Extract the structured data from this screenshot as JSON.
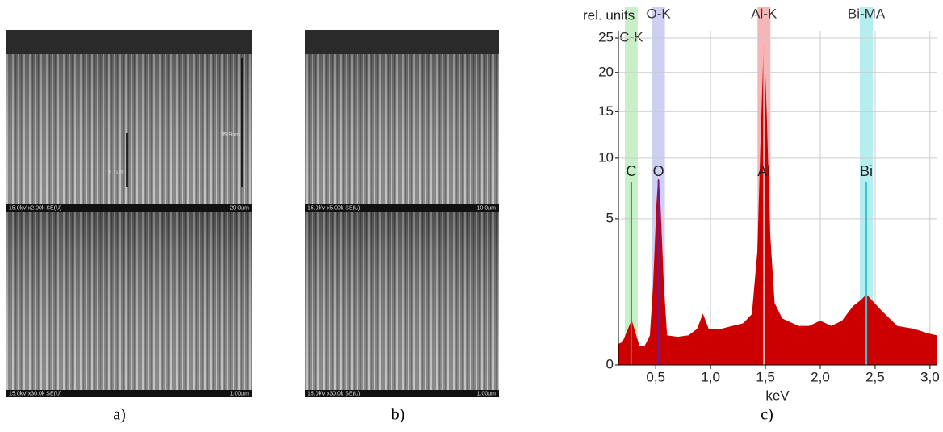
{
  "panels": [
    {
      "caption": "a)",
      "images": [
        {
          "info": "15.0kV x2.00k SE(U)",
          "scale": "20.0um",
          "annotations": [
            "35.9um",
            "16.1um"
          ]
        },
        {
          "info": "15.0kV x30.0k SE(U)",
          "scale": "1.00um"
        }
      ]
    },
    {
      "caption": "b)",
      "images": [
        {
          "info": "15.0kV x5.00k SE(U)",
          "scale": "10.0um"
        },
        {
          "info": "15.0kV x30.0k SE(U)",
          "scale": "1.00um"
        }
      ]
    }
  ],
  "chart_data": {
    "type": "area",
    "caption": "c)",
    "y_label": "rel. units",
    "x_label": "keV",
    "scale": "sqrt",
    "grid": true,
    "x": [
      0.16,
      0.2,
      0.25,
      0.28,
      0.31,
      0.35,
      0.4,
      0.45,
      0.48,
      0.51,
      0.525,
      0.54,
      0.57,
      0.6,
      0.7,
      0.8,
      0.88,
      0.93,
      0.98,
      1.1,
      1.2,
      1.3,
      1.38,
      1.43,
      1.46,
      1.487,
      1.51,
      1.54,
      1.58,
      1.65,
      1.8,
      1.9,
      2.0,
      2.1,
      2.2,
      2.3,
      2.38,
      2.42,
      2.46,
      2.55,
      2.7,
      2.85,
      3.0,
      3.06
    ],
    "series": [
      {
        "color": "#cc0000",
        "values": [
          0.1,
          0.12,
          0.3,
          0.45,
          0.25,
          0.08,
          0.08,
          0.2,
          1.5,
          6,
          8.06,
          6,
          1.5,
          0.2,
          0.18,
          0.2,
          0.3,
          0.59,
          0.3,
          0.3,
          0.35,
          0.4,
          0.6,
          3,
          12,
          23.8,
          14,
          4,
          0.9,
          0.5,
          0.35,
          0.35,
          0.45,
          0.35,
          0.45,
          0.8,
          1.0,
          1.15,
          1.0,
          0.7,
          0.35,
          0.3,
          0.22,
          0.2
        ]
      }
    ],
    "peaks": [
      {
        "band": "C-K",
        "label": "C",
        "energy": 0.277,
        "height": 7.8,
        "band_color": "#c8f0c8",
        "line_color": "#22aa22"
      },
      {
        "band": "O-K",
        "label": "O",
        "energy": 0.525,
        "height": 8,
        "band_color": "#cfcff2",
        "line_color": "#6a1b9a"
      },
      {
        "band": "Al-K",
        "label": "Al",
        "energy": 1.487,
        "height": 23.8,
        "band_color": "#f4b6b6",
        "line_color": "#f7b0b0"
      },
      {
        "band": "Bi-MA",
        "label": "Bi",
        "energy": 2.42,
        "height": 7.8,
        "band_color": "#b6eef0",
        "line_color": "#33c6d6"
      }
    ],
    "xlim": [
      0.16,
      3.06
    ],
    "ylim": [
      0,
      26
    ],
    "xticks": [
      {
        "value": 0.5,
        "label": "0,5"
      },
      {
        "value": 1.0,
        "label": "1,0"
      },
      {
        "value": 1.5,
        "label": "1,5"
      },
      {
        "value": 2.0,
        "label": "2,0"
      },
      {
        "value": 2.5,
        "label": "2,5"
      },
      {
        "value": 3.0,
        "label": "3,0"
      }
    ],
    "yticks": [
      0,
      5,
      10,
      15,
      20,
      25
    ]
  }
}
